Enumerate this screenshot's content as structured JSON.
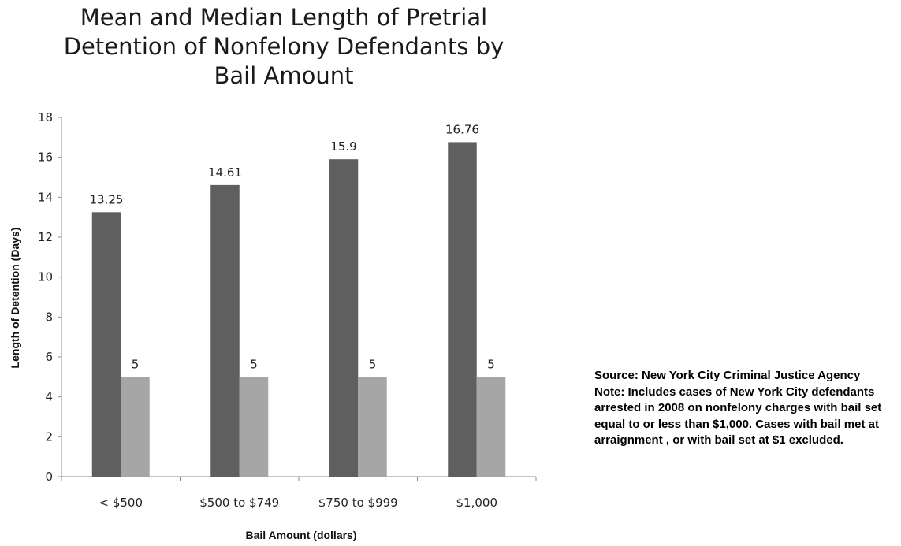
{
  "chart_data": {
    "type": "bar",
    "title_lines": [
      "Mean and Median Length of Pretrial",
      "Detention of Nonfelony Defendants by",
      "Bail Amount"
    ],
    "xlabel": "Bail Amount (dollars)",
    "ylabel": "Length of Detention (Days)",
    "ylim": [
      0,
      18
    ],
    "yticks": [
      0,
      2,
      4,
      6,
      8,
      10,
      12,
      14,
      16,
      18
    ],
    "categories": [
      "< $500",
      "$500 to $749",
      "$750 to $999",
      "$1,000"
    ],
    "series": [
      {
        "values": [
          13.25,
          14.61,
          15.9,
          16.76
        ],
        "labels": [
          "13.25",
          "14.61",
          "15.9",
          "16.76"
        ],
        "color": "#5f5f5f"
      },
      {
        "values": [
          5,
          5,
          5,
          5
        ],
        "labels": [
          "5",
          "5",
          "5",
          "5"
        ],
        "color": "#a6a6a6"
      }
    ],
    "grid": false,
    "legend": "none"
  },
  "notes": {
    "source": "Source: New York City Criminal Justice Agency",
    "note": "Note: Includes cases of New York City defendants arrested in 2008 on nonfelony charges with bail set equal to or less than $1,000. Cases with bail met at arraignment , or with bail set at $1 excluded."
  }
}
